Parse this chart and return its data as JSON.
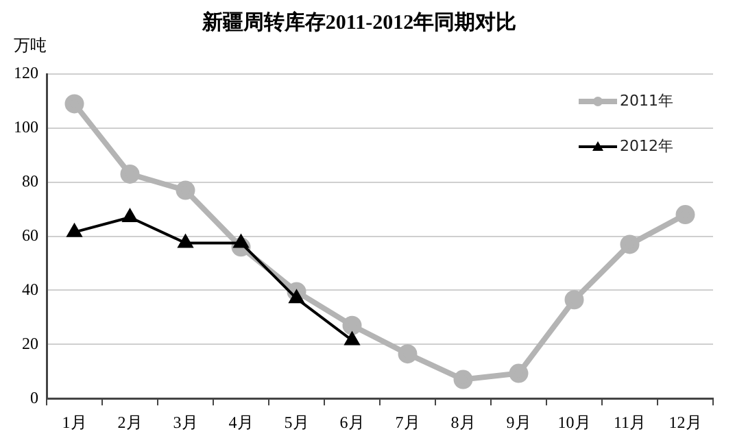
{
  "chart_data": {
    "type": "line",
    "title": "新疆周转库存2011-2012年同期对比",
    "ylabel": "万吨",
    "categories": [
      "1月",
      "2月",
      "3月",
      "4月",
      "5月",
      "6月",
      "7月",
      "8月",
      "9月",
      "10月",
      "11月",
      "12月"
    ],
    "series": [
      {
        "name": "2011年",
        "color": "#b4b4b4",
        "marker": "circle",
        "values": [
          109,
          83,
          77,
          56,
          39.5,
          27,
          16.5,
          7,
          9.3,
          36.5,
          57,
          68
        ]
      },
      {
        "name": "2012年",
        "color": "#000000",
        "marker": "triangle",
        "values": [
          61.5,
          67,
          57.5,
          57.5,
          37,
          21.5,
          null,
          null,
          null,
          null,
          null,
          null
        ]
      }
    ],
    "ylim": [
      0,
      120
    ],
    "yticks": [
      0,
      20,
      40,
      60,
      80,
      100,
      120
    ],
    "grid": "y",
    "legend": "top right",
    "line_style": "solid"
  }
}
